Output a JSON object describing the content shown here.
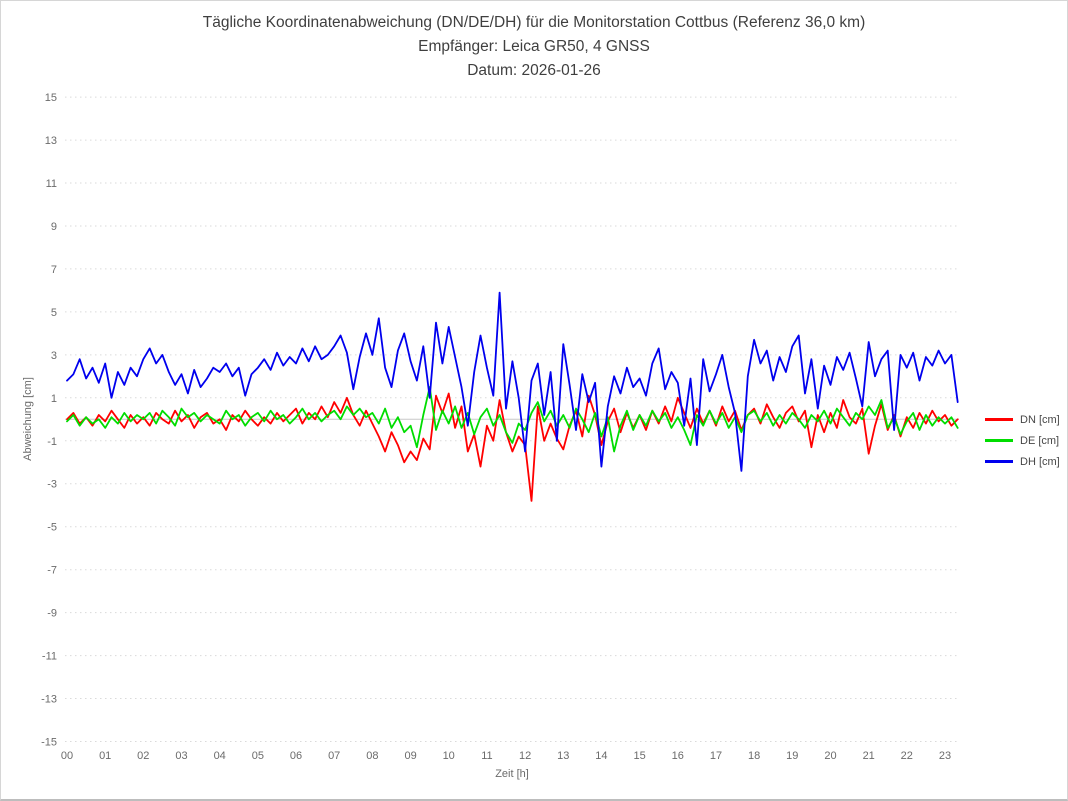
{
  "header": {
    "title": "Tägliche Koordinatenabweichung (DN/DE/DH) für die Monitorstation Cottbus (Referenz 36,0 km)",
    "subtitle_receiver": "Empfänger: Leica GR50, 4 GNSS",
    "subtitle_date": "Datum: 2026-01-26"
  },
  "axes": {
    "y_label": "Abweichung [cm]",
    "x_label": "Zeit [h]"
  },
  "legend": {
    "items": [
      {
        "label": "DN [cm]",
        "color": "#ff0000"
      },
      {
        "label": "DE [cm]",
        "color": "#00dd00"
      },
      {
        "label": "DH [cm]",
        "color": "#0000ee"
      }
    ]
  },
  "colors": {
    "grid": "#dadada",
    "zero_line": "#c8c8c8",
    "tick_text": "#6b6b6b",
    "title_text": "#3f3f3f",
    "border": "#d6d6d6"
  },
  "chart_data": {
    "type": "line",
    "title": "Tägliche Koordinatenabweichung (DN/DE/DH) für die Monitorstation Cottbus (Referenz 36,0 km)",
    "subtitle1": "Empfänger: Leica GR50, 4 GNSS",
    "subtitle2": "Datum: 2026-01-26",
    "xlabel": "Zeit [h]",
    "ylabel": "Abweichung [cm]",
    "xlim": [
      0,
      23.4
    ],
    "ylim": [
      -15,
      15
    ],
    "grid": "horizontal dotted lines at odd values, solid light line at 0",
    "legend_position": "right",
    "x_tick_labels": [
      "00",
      "01",
      "02",
      "03",
      "04",
      "05",
      "06",
      "07",
      "08",
      "09",
      "10",
      "11",
      "12",
      "13",
      "14",
      "15",
      "16",
      "17",
      "18",
      "19",
      "20",
      "21",
      "22",
      "23"
    ],
    "x_tick_hours": [
      0,
      1,
      2,
      3,
      4,
      5,
      6,
      7,
      8,
      9,
      10,
      11,
      12,
      13,
      14,
      15,
      16,
      17,
      18,
      19,
      20,
      21,
      22,
      23
    ],
    "y_ticks": [
      15,
      13,
      11,
      9,
      7,
      5,
      3,
      1,
      -1,
      -3,
      -5,
      -7,
      -9,
      -11,
      -13,
      -15
    ],
    "zero_line": true,
    "sampling": "10-minute interval, 00:00 to 23:20",
    "x_hours": [
      0.0,
      0.167,
      0.333,
      0.5,
      0.667,
      0.833,
      1.0,
      1.167,
      1.333,
      1.5,
      1.667,
      1.833,
      2.0,
      2.167,
      2.333,
      2.5,
      2.667,
      2.833,
      3.0,
      3.167,
      3.333,
      3.5,
      3.667,
      3.833,
      4.0,
      4.167,
      4.333,
      4.5,
      4.667,
      4.833,
      5.0,
      5.167,
      5.333,
      5.5,
      5.667,
      5.833,
      6.0,
      6.167,
      6.333,
      6.5,
      6.667,
      6.833,
      7.0,
      7.167,
      7.333,
      7.5,
      7.667,
      7.833,
      8.0,
      8.167,
      8.333,
      8.5,
      8.667,
      8.833,
      9.0,
      9.167,
      9.333,
      9.5,
      9.667,
      9.833,
      10.0,
      10.167,
      10.333,
      10.5,
      10.667,
      10.833,
      11.0,
      11.167,
      11.333,
      11.5,
      11.667,
      11.833,
      12.0,
      12.167,
      12.333,
      12.5,
      12.667,
      12.833,
      13.0,
      13.167,
      13.333,
      13.5,
      13.667,
      13.833,
      14.0,
      14.167,
      14.333,
      14.5,
      14.667,
      14.833,
      15.0,
      15.167,
      15.333,
      15.5,
      15.667,
      15.833,
      16.0,
      16.167,
      16.333,
      16.5,
      16.667,
      16.833,
      17.0,
      17.167,
      17.333,
      17.5,
      17.667,
      17.833,
      18.0,
      18.167,
      18.333,
      18.5,
      18.667,
      18.833,
      19.0,
      19.167,
      19.333,
      19.5,
      19.667,
      19.833,
      20.0,
      20.167,
      20.333,
      20.5,
      20.667,
      20.833,
      21.0,
      21.167,
      21.333,
      21.5,
      21.667,
      21.833,
      22.0,
      22.167,
      22.333,
      22.5,
      22.667,
      22.833,
      23.0,
      23.167,
      23.333
    ],
    "series": [
      {
        "name": "DN [cm]",
        "color": "#ff0000",
        "values": [
          0.0,
          0.3,
          -0.2,
          0.1,
          -0.3,
          0.2,
          -0.1,
          0.4,
          0.0,
          -0.4,
          0.2,
          -0.2,
          0.1,
          -0.3,
          0.3,
          0.0,
          -0.2,
          0.4,
          -0.1,
          0.2,
          -0.4,
          0.1,
          0.3,
          -0.2,
          0.0,
          -0.5,
          0.2,
          -0.1,
          0.4,
          0.0,
          -0.3,
          0.1,
          -0.2,
          0.3,
          -0.1,
          0.2,
          0.5,
          -0.2,
          0.3,
          0.0,
          0.6,
          0.1,
          0.8,
          0.3,
          1.0,
          0.2,
          -0.3,
          0.4,
          -0.2,
          -0.8,
          -1.5,
          -0.6,
          -1.2,
          -2.0,
          -1.5,
          -1.9,
          -0.9,
          -1.4,
          1.1,
          0.3,
          1.2,
          -0.4,
          0.6,
          -1.5,
          -0.7,
          -2.2,
          -0.3,
          -1.0,
          0.9,
          -0.6,
          -1.5,
          -0.8,
          -1.2,
          -3.8,
          0.6,
          -1.0,
          -0.2,
          -0.9,
          -1.4,
          -0.3,
          0.4,
          -0.8,
          1.1,
          0.2,
          -1.2,
          -0.1,
          0.5,
          -0.6,
          0.3,
          -0.4,
          0.2,
          -0.5,
          0.4,
          -0.2,
          0.6,
          -0.1,
          1.0,
          0.3,
          -0.4,
          0.5,
          -0.2,
          0.4,
          -0.3,
          0.6,
          -0.1,
          0.4,
          -0.5,
          0.2,
          0.5,
          -0.2,
          0.7,
          0.1,
          -0.4,
          0.3,
          0.6,
          -0.1,
          0.4,
          -1.3,
          0.2,
          -0.6,
          0.3,
          -0.4,
          0.9,
          0.1,
          -0.2,
          0.5,
          -1.6,
          -0.3,
          0.7,
          -0.5,
          0.2,
          -0.8,
          0.1,
          -0.4,
          0.3,
          -0.2,
          0.4,
          -0.1,
          0.2,
          -0.3,
          0.0
        ]
      },
      {
        "name": "DE [cm]",
        "color": "#00dd00",
        "values": [
          -0.1,
          0.2,
          -0.3,
          0.1,
          -0.2,
          0.0,
          -0.4,
          0.1,
          -0.2,
          0.3,
          -0.1,
          0.2,
          0.0,
          0.3,
          -0.2,
          0.4,
          0.1,
          -0.3,
          0.5,
          0.1,
          0.3,
          -0.1,
          0.2,
          0.0,
          -0.2,
          0.4,
          0.0,
          0.2,
          -0.3,
          0.1,
          0.3,
          -0.1,
          0.4,
          0.0,
          0.2,
          -0.2,
          0.1,
          0.5,
          0.0,
          0.3,
          -0.1,
          0.2,
          0.4,
          0.0,
          0.6,
          0.2,
          0.5,
          0.1,
          0.3,
          -0.2,
          0.5,
          -0.4,
          0.1,
          -0.6,
          -0.3,
          -1.3,
          0.2,
          1.5,
          -0.5,
          0.4,
          -0.2,
          0.6,
          -0.4,
          0.3,
          -0.7,
          0.1,
          0.5,
          -0.3,
          0.2,
          -0.6,
          -1.1,
          -0.2,
          -0.5,
          0.3,
          0.8,
          -0.1,
          0.4,
          -0.3,
          0.2,
          -0.4,
          0.5,
          0.0,
          -0.6,
          0.3,
          -0.8,
          0.1,
          -1.5,
          -0.3,
          0.4,
          -0.5,
          0.2,
          -0.3,
          0.4,
          -0.1,
          0.3,
          -0.4,
          0.1,
          -0.5,
          -1.2,
          0.2,
          -0.3,
          0.4,
          -0.2,
          0.3,
          -0.4,
          0.1,
          -0.6,
          0.2,
          0.4,
          -0.1,
          0.3,
          -0.3,
          0.2,
          -0.2,
          0.3,
          0.0,
          -0.4,
          0.2,
          -0.1,
          0.4,
          -0.2,
          0.5,
          0.1,
          -0.3,
          0.3,
          0.0,
          0.6,
          0.2,
          0.9,
          -0.4,
          0.1,
          -0.7,
          -0.1,
          0.3,
          -0.5,
          0.2,
          -0.3,
          0.1,
          -0.2,
          0.1,
          -0.4
        ]
      },
      {
        "name": "DH [cm]",
        "color": "#0000ee",
        "values": [
          1.8,
          2.1,
          2.8,
          1.9,
          2.4,
          1.7,
          2.6,
          1.0,
          2.2,
          1.6,
          2.4,
          2.0,
          2.8,
          3.3,
          2.6,
          3.0,
          2.2,
          1.6,
          2.1,
          1.2,
          2.3,
          1.5,
          1.9,
          2.4,
          2.2,
          2.6,
          2.0,
          2.4,
          1.1,
          2.1,
          2.4,
          2.8,
          2.3,
          3.1,
          2.5,
          2.9,
          2.6,
          3.3,
          2.7,
          3.4,
          2.8,
          3.0,
          3.4,
          3.9,
          3.1,
          1.4,
          2.9,
          4.0,
          3.0,
          4.7,
          2.4,
          1.5,
          3.2,
          4.0,
          2.7,
          1.8,
          3.4,
          1.0,
          4.5,
          2.6,
          4.3,
          2.9,
          1.5,
          -0.3,
          2.2,
          3.9,
          2.4,
          1.1,
          5.9,
          0.5,
          2.7,
          1.0,
          -1.5,
          1.8,
          2.6,
          0.2,
          2.2,
          -1.0,
          3.5,
          1.6,
          -0.5,
          2.1,
          0.8,
          1.7,
          -2.2,
          0.6,
          2.0,
          1.2,
          2.4,
          1.5,
          1.9,
          1.1,
          2.6,
          3.3,
          1.4,
          2.2,
          1.7,
          -0.3,
          1.9,
          -1.2,
          2.8,
          1.3,
          2.1,
          3.0,
          1.5,
          0.3,
          -2.4,
          2.0,
          3.7,
          2.6,
          3.2,
          1.8,
          2.9,
          2.2,
          3.4,
          3.9,
          1.2,
          2.8,
          0.5,
          2.5,
          1.6,
          2.9,
          2.3,
          3.1,
          1.9,
          0.6,
          3.6,
          2.0,
          2.8,
          3.2,
          -0.5,
          3.0,
          2.4,
          3.1,
          1.8,
          2.9,
          2.5,
          3.2,
          2.6,
          3.0,
          0.8
        ]
      }
    ]
  }
}
